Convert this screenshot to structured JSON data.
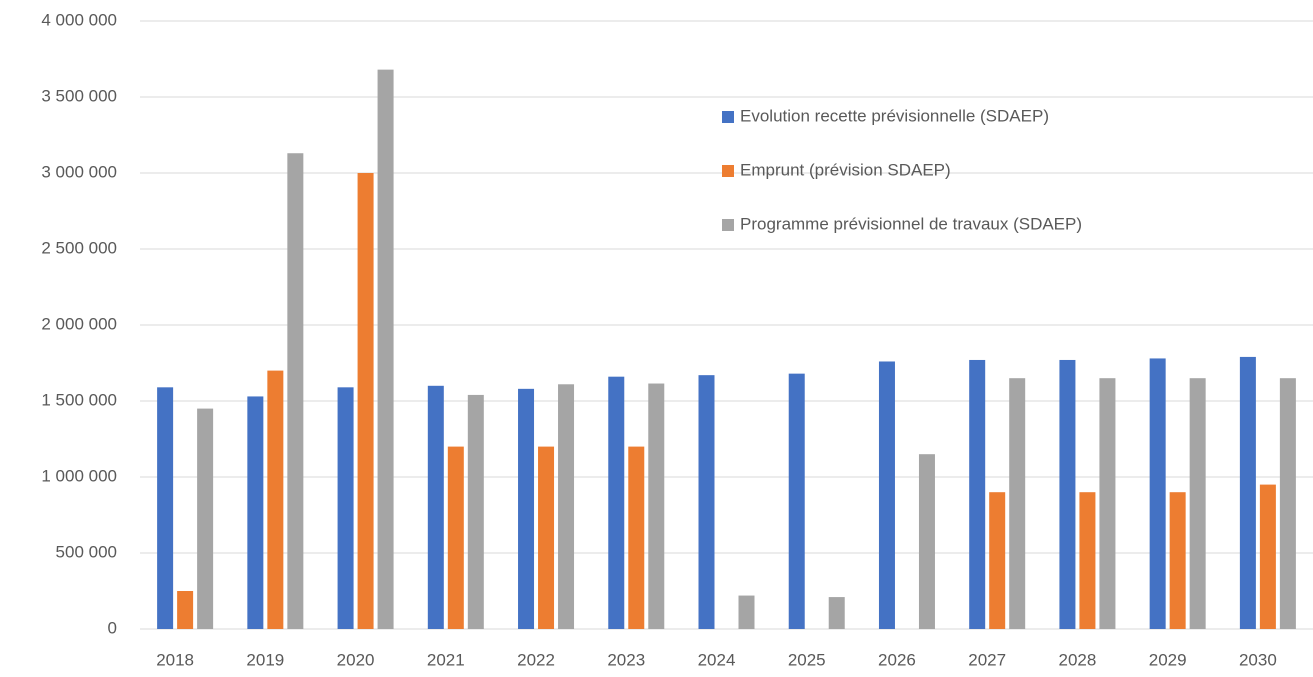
{
  "chart_data": {
    "type": "bar",
    "categories": [
      "2018",
      "2019",
      "2020",
      "2021",
      "2022",
      "2023",
      "2024",
      "2025",
      "2026",
      "2027",
      "2028",
      "2029",
      "2030"
    ],
    "series": [
      {
        "name": "Evolution recette prévisionnelle (SDAEP)",
        "color": "#4472c4",
        "values": [
          1590000,
          1530000,
          1590000,
          1600000,
          1580000,
          1660000,
          1670000,
          1680000,
          1760000,
          1770000,
          1770000,
          1780000,
          1790000
        ]
      },
      {
        "name": "Emprunt (prévision SDAEP)",
        "color": "#ed7d31",
        "values": [
          250000,
          1700000,
          3000000,
          1200000,
          1200000,
          1200000,
          null,
          null,
          null,
          900000,
          900000,
          900000,
          950000
        ]
      },
      {
        "name": "Programme prévisionnel de travaux (SDAEP)",
        "color": "#a5a5a5",
        "values": [
          1450000,
          3130000,
          3680000,
          1540000,
          1610000,
          1615000,
          220000,
          210000,
          1150000,
          1650000,
          1650000,
          1650000,
          1650000
        ]
      }
    ],
    "ylim": [
      0,
      4000000
    ],
    "yticks": [
      0,
      {
        "value": 500000,
        "label": "500 000"
      },
      {
        "value": 1000000,
        "label": "1 000 000"
      },
      {
        "value": 1500000,
        "label": "1 500 000"
      },
      {
        "value": 2000000,
        "label": "2 000 000"
      },
      {
        "value": 2500000,
        "label": "2 500 000"
      },
      {
        "value": 3000000,
        "label": "3 000 000"
      },
      {
        "value": 3500000,
        "label": "3 500 000"
      },
      {
        "value": 4000000,
        "label": "4 000 000"
      }
    ],
    "grid": true,
    "legend": "upper right"
  }
}
